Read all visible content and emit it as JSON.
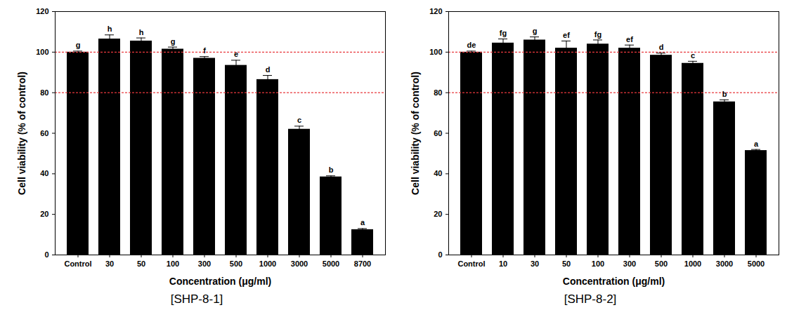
{
  "chart_data": [
    {
      "type": "bar",
      "caption": "[SHP-8-1]",
      "x_label": "Concentration (μg/ml)",
      "y_label": "Cell viability (% of control)",
      "categories": [
        "Control",
        "30",
        "50",
        "100",
        "300",
        "500",
        "1000",
        "3000",
        "5000",
        "8700"
      ],
      "values": [
        100,
        106.5,
        105.5,
        101.5,
        97,
        93.5,
        86.5,
        62,
        38.5,
        12.5
      ],
      "errors": [
        0.5,
        2,
        1.5,
        1,
        0.8,
        2.5,
        2,
        1.5,
        0.5,
        0.5
      ],
      "letters": [
        "g",
        "h",
        "h",
        "g",
        "f",
        "e",
        "d",
        "c",
        "b",
        "a"
      ],
      "reference_lines": [
        100,
        80
      ],
      "color": "#000000",
      "ylim": [
        0,
        120
      ],
      "yticks": [
        0,
        20,
        40,
        60,
        80,
        100,
        120
      ]
    },
    {
      "type": "bar",
      "caption": "[SHP-8-2]",
      "x_label": "Concentration (μg/ml)",
      "y_label": "Cell viability (% of control)",
      "categories": [
        "Control",
        "10",
        "30",
        "50",
        "100",
        "300",
        "500",
        "1000",
        "3000",
        "5000"
      ],
      "values": [
        100,
        104.5,
        106,
        102,
        104,
        102,
        98.5,
        94.5,
        75.5,
        51.5
      ],
      "errors": [
        0.5,
        2,
        1.5,
        3.5,
        2,
        1.5,
        1,
        1,
        1,
        0.5
      ],
      "letters": [
        "de",
        "fg",
        "g",
        "ef",
        "fg",
        "ef",
        "d",
        "c",
        "b",
        "a"
      ],
      "reference_lines": [
        100,
        80
      ],
      "color": "#000000",
      "ylim": [
        0,
        120
      ],
      "yticks": [
        0,
        20,
        40,
        60,
        80,
        100,
        120
      ]
    }
  ]
}
